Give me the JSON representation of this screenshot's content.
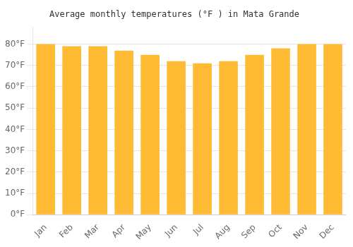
{
  "chart_data": {
    "type": "bar",
    "title": "Average monthly temperatures (°F ) in Mata Grande",
    "categories": [
      "Jan",
      "Feb",
      "Mar",
      "Apr",
      "May",
      "Jun",
      "Jul",
      "Aug",
      "Sep",
      "Oct",
      "Nov",
      "Dec"
    ],
    "values": [
      80,
      79,
      79,
      77,
      75,
      72,
      71,
      72,
      75,
      78,
      80,
      80
    ],
    "color": "#FFBB33",
    "ylim": [
      0,
      88
    ],
    "yticks": [
      {
        "value": 0,
        "label": "0°F"
      },
      {
        "value": 10,
        "label": "10°F"
      },
      {
        "value": 20,
        "label": "20°F"
      },
      {
        "value": 30,
        "label": "30°F"
      },
      {
        "value": 40,
        "label": "40°F"
      },
      {
        "value": 50,
        "label": "50°F"
      },
      {
        "value": 60,
        "label": "60°F"
      },
      {
        "value": 70,
        "label": "70°F"
      },
      {
        "value": 80,
        "label": "80°F"
      }
    ],
    "grid": true
  }
}
